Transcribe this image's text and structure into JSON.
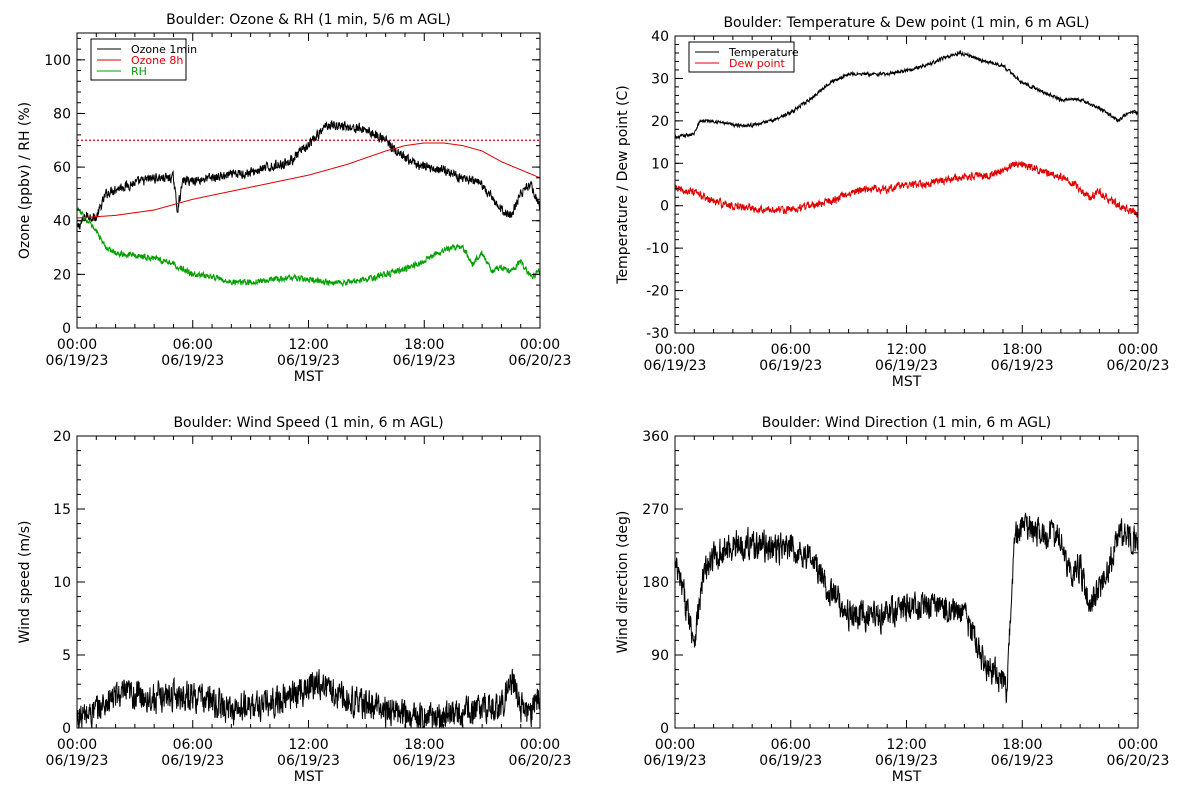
{
  "chart_data": [
    {
      "type": "line",
      "title": "Boulder: Ozone & RH (1 min, 5/6 m AGL)",
      "ylabel": "Ozone (ppbv) / RH (%)",
      "xlabel": "MST",
      "ylim": [
        0,
        110
      ],
      "yticks": [
        0,
        20,
        40,
        60,
        80,
        100
      ],
      "xticks": [
        {
          "h": 0,
          "time": "00:00",
          "date": "06/19/23"
        },
        {
          "h": 6,
          "time": "06:00",
          "date": "06/19/23"
        },
        {
          "h": 12,
          "time": "12:00",
          "date": "06/19/23"
        },
        {
          "h": 18,
          "time": "18:00",
          "date": "06/19/23"
        },
        {
          "h": 24,
          "time": "00:00",
          "date": "06/20/23"
        }
      ],
      "legend": "top-left",
      "reference_line": {
        "y": 70,
        "color": "#e00000",
        "style": "dotted"
      },
      "series": [
        {
          "name": "Ozone 1min",
          "color": "#000000",
          "noise": 1.6,
          "x": [
            0,
            0.5,
            1,
            1.5,
            2,
            3,
            4,
            5,
            5.2,
            5.5,
            6,
            7,
            8,
            9,
            10,
            11,
            12,
            12.5,
            13,
            14,
            15,
            15.5,
            16,
            16.5,
            17,
            18,
            19,
            20,
            21,
            22,
            22.5,
            23,
            23.5,
            24
          ],
          "y": [
            37,
            42,
            41,
            50,
            52,
            54,
            56,
            56,
            44,
            55,
            55,
            56,
            57,
            58,
            60,
            62,
            68,
            72,
            76,
            75,
            74,
            72,
            70,
            66,
            63,
            60,
            59,
            56,
            53,
            44,
            42,
            50,
            54,
            45
          ]
        },
        {
          "name": "Ozone 8h",
          "color": "#e00000",
          "noise": 0,
          "x": [
            0,
            2,
            4,
            6,
            8,
            10,
            12,
            14,
            16,
            17,
            18,
            19,
            20,
            21,
            22,
            23,
            24
          ],
          "y": [
            41,
            42,
            44,
            48,
            51,
            54,
            57,
            61,
            66,
            68,
            69,
            69,
            68,
            66,
            62,
            59,
            56
          ]
        },
        {
          "name": "RH",
          "color": "#00a000",
          "noise": 1.0,
          "x": [
            0,
            0.5,
            1,
            1.5,
            2,
            3,
            4,
            5,
            5.5,
            6,
            7,
            8,
            9,
            10,
            11,
            12,
            13,
            14,
            15,
            16,
            17,
            18,
            19,
            19.5,
            20,
            20.5,
            21,
            21.5,
            22,
            22.5,
            23,
            23.5,
            24
          ],
          "y": [
            45,
            40,
            36,
            30,
            28,
            27,
            26,
            24,
            22,
            20,
            19,
            17,
            17,
            18,
            19,
            18,
            17,
            17,
            18,
            20,
            22,
            25,
            29,
            30,
            30,
            24,
            28,
            21,
            23,
            21,
            25,
            19,
            21
          ]
        }
      ]
    },
    {
      "type": "line",
      "title": "Boulder: Temperature & Dew point (1 min, 6 m AGL)",
      "ylabel": "Temperature / Dew point (C)",
      "xlabel": "MST",
      "ylim": [
        -30,
        40
      ],
      "yticks": [
        -30,
        -20,
        -10,
        0,
        10,
        20,
        30,
        40
      ],
      "xticks": [
        {
          "h": 0,
          "time": "00:00",
          "date": "06/19/23"
        },
        {
          "h": 6,
          "time": "06:00",
          "date": "06/19/23"
        },
        {
          "h": 12,
          "time": "12:00",
          "date": "06/19/23"
        },
        {
          "h": 18,
          "time": "18:00",
          "date": "06/19/23"
        },
        {
          "h": 24,
          "time": "00:00",
          "date": "06/20/23"
        }
      ],
      "legend": "top-left",
      "series": [
        {
          "name": "Temperature",
          "color": "#000000",
          "noise": 0.35,
          "x": [
            0,
            1,
            1.3,
            2,
            3,
            4,
            5,
            6,
            7,
            8,
            9,
            10,
            11,
            12,
            13,
            14,
            14.8,
            15.5,
            16,
            17,
            18,
            19,
            20,
            21,
            22,
            23,
            23.5,
            24
          ],
          "y": [
            16,
            17,
            20,
            20,
            19,
            19,
            20,
            22,
            25,
            29,
            31,
            31,
            31,
            32,
            33,
            35,
            36,
            35,
            34,
            33,
            29,
            27,
            25,
            25,
            23,
            20,
            22,
            22
          ]
        },
        {
          "name": "Dew point",
          "color": "#e00000",
          "noise": 0.8,
          "x": [
            0,
            1,
            2,
            3,
            4,
            5,
            6,
            7,
            8,
            9,
            10,
            11,
            12,
            13,
            14,
            15,
            16,
            17,
            17.5,
            18,
            19,
            20,
            21,
            21.5,
            22,
            23,
            23.5,
            24
          ],
          "y": [
            4,
            3,
            1,
            0,
            -0.5,
            -1,
            -1,
            0,
            1,
            3,
            4,
            4,
            5,
            5,
            6,
            7,
            7,
            8,
            10,
            10,
            8,
            7,
            4,
            2,
            3,
            0,
            -1,
            -2
          ]
        }
      ]
    },
    {
      "type": "line",
      "title": "Boulder: Wind Speed (1 min, 6 m AGL)",
      "ylabel": "Wind speed (m/s)",
      "xlabel": "MST",
      "ylim": [
        0,
        20
      ],
      "yticks": [
        0,
        5,
        10,
        15,
        20
      ],
      "xticks": [
        {
          "h": 0,
          "time": "00:00",
          "date": "06/19/23"
        },
        {
          "h": 6,
          "time": "06:00",
          "date": "06/19/23"
        },
        {
          "h": 12,
          "time": "12:00",
          "date": "06/19/23"
        },
        {
          "h": 18,
          "time": "18:00",
          "date": "06/19/23"
        },
        {
          "h": 24,
          "time": "00:00",
          "date": "06/20/23"
        }
      ],
      "series": [
        {
          "name": "",
          "color": "#000000",
          "noise": 0.9,
          "x": [
            0,
            1,
            2,
            3,
            4,
            5,
            6,
            7,
            8,
            9,
            10,
            11,
            12,
            12.5,
            13,
            14,
            15,
            16,
            17,
            18,
            19,
            20,
            21,
            22,
            22.5,
            23,
            23.5,
            24
          ],
          "y": [
            0.6,
            1.2,
            2.2,
            2.3,
            2.0,
            2.3,
            2.2,
            1.8,
            1.2,
            1.5,
            1.6,
            2.2,
            2.8,
            3.2,
            2.7,
            2.0,
            1.6,
            1.2,
            1.0,
            0.8,
            0.8,
            1.0,
            1.4,
            1.5,
            3.2,
            1.5,
            0.8,
            2.4
          ]
        }
      ]
    },
    {
      "type": "line",
      "title": "Boulder: Wind Direction (1 min, 6 m AGL)",
      "ylabel": "Wind direction (deg)",
      "xlabel": "MST",
      "ylim": [
        0,
        360
      ],
      "yticks": [
        0,
        90,
        180,
        270,
        360
      ],
      "xticks": [
        {
          "h": 0,
          "time": "00:00",
          "date": "06/19/23"
        },
        {
          "h": 6,
          "time": "06:00",
          "date": "06/19/23"
        },
        {
          "h": 12,
          "time": "12:00",
          "date": "06/19/23"
        },
        {
          "h": 18,
          "time": "18:00",
          "date": "06/19/23"
        },
        {
          "h": 24,
          "time": "00:00",
          "date": "06/20/23"
        }
      ],
      "series": [
        {
          "name": "",
          "color": "#000000",
          "noise": 16,
          "x": [
            0,
            0.5,
            1,
            1.5,
            2,
            3,
            4,
            5,
            6,
            7,
            7.5,
            8,
            9,
            10,
            11,
            12,
            13,
            14,
            15,
            15.5,
            16,
            16.5,
            17,
            17.2,
            17.4,
            17.6,
            18,
            19,
            20,
            20.5,
            21,
            21.5,
            22,
            22.5,
            23,
            23.5,
            24
          ],
          "y": [
            200,
            160,
            110,
            190,
            210,
            225,
            228,
            222,
            220,
            212,
            190,
            170,
            140,
            135,
            140,
            150,
            150,
            148,
            140,
            115,
            80,
            70,
            60,
            40,
            150,
            230,
            245,
            240,
            235,
            190,
            200,
            150,
            170,
            200,
            240,
            235,
            230
          ]
        }
      ]
    }
  ]
}
